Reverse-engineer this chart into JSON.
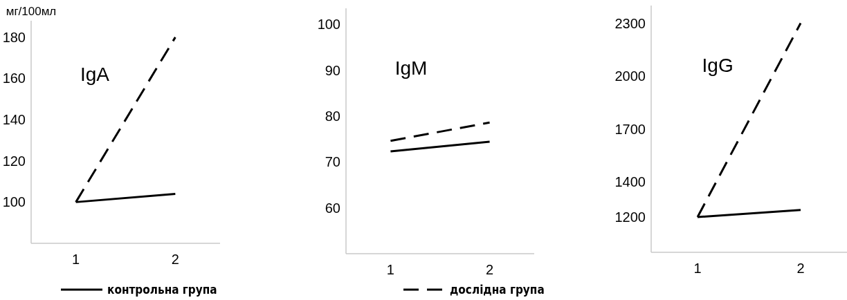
{
  "chart_data": [
    {
      "type": "line",
      "title": "IgA",
      "ylabel": "мг/100мл",
      "categories": [
        "1",
        "2"
      ],
      "ylim": [
        80,
        188
      ],
      "yticks": [
        100,
        120,
        140,
        160,
        180
      ],
      "grid": false,
      "legend": "bottom",
      "marker": "none",
      "series": [
        {
          "name": "контрольна група",
          "color": "#000000",
          "line_style": "solid",
          "values": [
            100,
            104
          ]
        },
        {
          "name": "дослідна група",
          "color": "#000000",
          "line_style": "dashed",
          "values": [
            100,
            180
          ]
        }
      ]
    },
    {
      "type": "line",
      "title": "IgM",
      "categories": [
        "1",
        "2"
      ],
      "ylim": [
        50,
        103.5
      ],
      "yticks": [
        60,
        70,
        80,
        90,
        100
      ],
      "grid": false,
      "legend": false,
      "marker": "none",
      "series": [
        {
          "color": "#000000",
          "line_style": "solid",
          "values": [
            72.3,
            74.4
          ]
        },
        {
          "color": "#000000",
          "line_style": "dashed",
          "values": [
            74.6,
            78.6
          ]
        }
      ]
    },
    {
      "type": "line",
      "title": "IgG",
      "categories": [
        "1",
        "2"
      ],
      "ylim": [
        1000,
        2400
      ],
      "yticks": [
        1200,
        1400,
        1700,
        2000,
        2300
      ],
      "grid": false,
      "legend": false,
      "marker": "none",
      "series": [
        {
          "color": "#000000",
          "line_style": "solid",
          "values": [
            1200,
            1240
          ]
        },
        {
          "color": "#000000",
          "line_style": "dashed",
          "values": [
            1200,
            2300
          ]
        }
      ]
    }
  ]
}
